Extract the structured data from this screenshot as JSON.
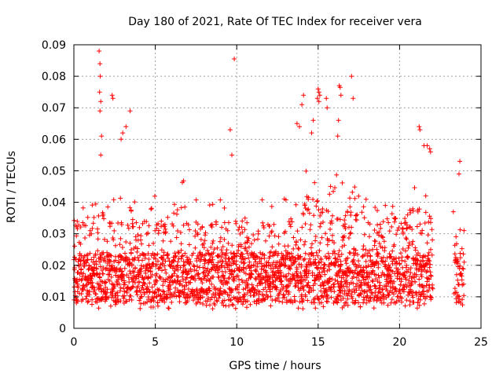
{
  "chart_data": {
    "type": "scatter",
    "title": "Day 180 of 2021, Rate Of TEC Index for receiver vera",
    "xlabel": "GPS time / hours",
    "ylabel": "ROTI / TECUs",
    "xlim": [
      0,
      25
    ],
    "ylim": [
      0,
      0.09
    ],
    "xticks": [
      0,
      5,
      10,
      15,
      20,
      25
    ],
    "xtick_labels": [
      "0",
      "5",
      "10",
      "15",
      "20",
      "25"
    ],
    "yticks": [
      0,
      0.01,
      0.02,
      0.03,
      0.04,
      0.05,
      0.06,
      0.07,
      0.08,
      0.09
    ],
    "ytick_labels": [
      "0",
      "0.01",
      "0.02",
      "0.03",
      "0.04",
      "0.05",
      "0.06",
      "0.07",
      "0.08",
      "0.09"
    ],
    "grid": true,
    "marker": "plus",
    "color": "#ff0000",
    "data_gaps_hours": [
      [
        22.05,
        23.4
      ]
    ],
    "points": [
      [
        1.55,
        0.088
      ],
      [
        1.6,
        0.084
      ],
      [
        1.62,
        0.08
      ],
      [
        1.58,
        0.075
      ],
      [
        1.65,
        0.072
      ],
      [
        1.6,
        0.069
      ],
      [
        2.35,
        0.074
      ],
      [
        2.4,
        0.073
      ],
      [
        3.45,
        0.069
      ],
      [
        3.2,
        0.064
      ],
      [
        3.0,
        0.062
      ],
      [
        2.9,
        0.06
      ],
      [
        1.7,
        0.061
      ],
      [
        1.65,
        0.055
      ],
      [
        9.85,
        0.0855
      ],
      [
        9.6,
        0.063
      ],
      [
        9.7,
        0.055
      ],
      [
        15.0,
        0.076
      ],
      [
        15.05,
        0.075
      ],
      [
        15.1,
        0.074
      ],
      [
        14.95,
        0.073
      ],
      [
        15.05,
        0.072
      ],
      [
        14.1,
        0.074
      ],
      [
        14.0,
        0.071
      ],
      [
        16.3,
        0.077
      ],
      [
        16.35,
        0.0765
      ],
      [
        16.4,
        0.074
      ],
      [
        17.05,
        0.08
      ],
      [
        17.15,
        0.073
      ],
      [
        16.25,
        0.066
      ],
      [
        16.2,
        0.061
      ],
      [
        15.5,
        0.073
      ],
      [
        15.55,
        0.07
      ],
      [
        14.7,
        0.066
      ],
      [
        14.6,
        0.062
      ],
      [
        13.7,
        0.065
      ],
      [
        13.85,
        0.064
      ],
      [
        21.2,
        0.064
      ],
      [
        21.25,
        0.063
      ],
      [
        21.5,
        0.058
      ],
      [
        21.85,
        0.057
      ],
      [
        21.9,
        0.056
      ],
      [
        21.7,
        0.058
      ],
      [
        23.7,
        0.053
      ],
      [
        23.65,
        0.049
      ],
      [
        23.3,
        0.037
      ],
      [
        23.4,
        0.021
      ],
      [
        23.35,
        0.011
      ],
      [
        23.5,
        0.017
      ]
    ]
  }
}
